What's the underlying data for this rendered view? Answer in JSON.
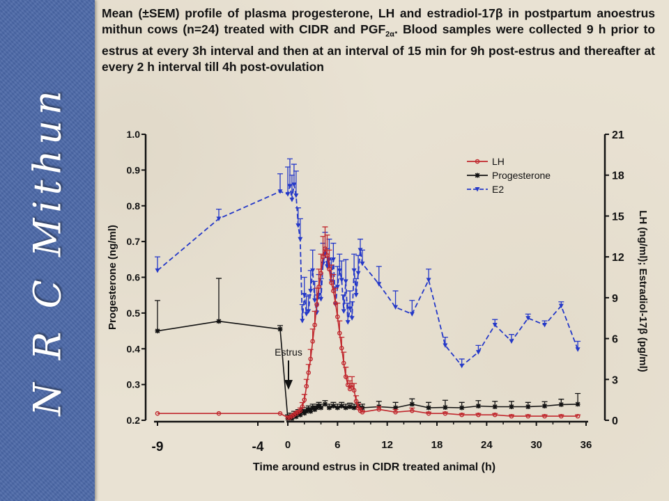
{
  "sidebar": {
    "label": "N R C Mithun"
  },
  "header": {
    "title_main": "Mean (±SEM) profile of plasma progesterone, LH and estradiol-17β in postpartum anoestrus mithun cows (n=24) treated with CIDR and PGF",
    "title_sub": "2α",
    "title_rest": ". Blood samples were collected 9 h prior to estrus at every 3h interval and then at an interval of 15 min for 9h post-estrus and thereafter at every 2 h interval till 4h post-ovulation"
  },
  "chart_data": {
    "type": "line",
    "xlabel": "Time around estrus in CIDR treated animal (h)",
    "ylabel_left": "Progesterone (ng/ml)",
    "ylabel_right": "LH (ng/ml); Estradiol-17β (pg/ml)",
    "x_tick_labels": [
      "-9",
      "-4",
      "0",
      "6",
      "12",
      "18",
      "24",
      "30",
      "36"
    ],
    "pre_estrus_ticks": [
      -9,
      -4
    ],
    "post_estrus_ticks": [
      0,
      6,
      12,
      18,
      24,
      30,
      36
    ],
    "ylim_left": [
      0.2,
      1.0
    ],
    "yticks_left": [
      "0.2",
      "0.3",
      "0.4",
      "0.5",
      "0.6",
      "0.7",
      "0.8",
      "0.9",
      "1.0"
    ],
    "ylim_right": [
      0,
      21
    ],
    "yticks_right": [
      "0",
      "3",
      "6",
      "9",
      "12",
      "15",
      "18",
      "21"
    ],
    "annotation": "Estrus",
    "legend_position": "top-right",
    "legend": [
      "LH",
      "Progesterone",
      "E2"
    ],
    "colors": {
      "lh": "#c0272d",
      "progesterone": "#111111",
      "e2": "#2438c8",
      "axis": "#111111"
    },
    "series": [
      {
        "name": "LH",
        "axis": "right",
        "style": "solid",
        "marker": "circle",
        "x": [
          -9,
          -6,
          -3,
          0,
          0.25,
          0.5,
          0.75,
          1,
          1.25,
          1.5,
          1.75,
          2,
          2.25,
          2.5,
          2.75,
          3,
          3.25,
          3.5,
          3.75,
          4,
          4.25,
          4.5,
          4.75,
          5,
          5.25,
          5.5,
          5.75,
          6,
          6.25,
          6.5,
          6.75,
          7,
          7.25,
          7.5,
          7.75,
          8,
          8.25,
          8.5,
          8.75,
          9,
          11,
          13,
          15,
          17,
          19,
          21,
          23,
          25,
          27,
          29,
          31,
          33,
          35
        ],
        "y": [
          0.5,
          0.5,
          0.5,
          0.2,
          0.2,
          0.3,
          0.4,
          0.5,
          0.6,
          0.7,
          1.0,
          1.5,
          2.5,
          3.5,
          4.5,
          5.8,
          7.0,
          8.5,
          9.8,
          10.8,
          12.0,
          12.6,
          12.1,
          11.1,
          10.1,
          9.5,
          8.6,
          7.6,
          6.4,
          5.3,
          4.2,
          3.2,
          2.6,
          2.3,
          2.6,
          2.2,
          1.4,
          0.9,
          0.7,
          0.6,
          0.8,
          0.6,
          0.7,
          0.5,
          0.5,
          0.4,
          0.4,
          0.4,
          0.3,
          0.3,
          0.3,
          0.3,
          0.3
        ],
        "err": [
          0,
          0,
          0,
          0.1,
          0.1,
          0.1,
          0.1,
          0.1,
          0.1,
          0.2,
          0.3,
          0.4,
          0.5,
          0.6,
          0.7,
          0.9,
          1.0,
          1.2,
          1.3,
          1.4,
          1.5,
          1.6,
          1.5,
          1.4,
          1.3,
          1.2,
          1.1,
          1.0,
          0.9,
          0.8,
          0.8,
          0.7,
          0.6,
          0.6,
          0.6,
          0.5,
          0.4,
          0.3,
          0.2,
          0.1,
          0.2,
          0.2,
          0.2,
          0.1,
          0.1,
          0.1,
          0.1,
          0.1,
          0.1,
          0.1,
          0.1,
          0.1,
          0.1
        ]
      },
      {
        "name": "Progesterone",
        "axis": "left",
        "style": "solid",
        "marker": "star",
        "x": [
          -9,
          -6,
          -3,
          0,
          0.25,
          0.5,
          0.75,
          1,
          1.25,
          1.5,
          1.75,
          2,
          2.25,
          2.5,
          2.75,
          3,
          3.25,
          3.5,
          3.75,
          4,
          4.5,
          5,
          5.5,
          6,
          6.5,
          7,
          7.5,
          8,
          8.5,
          9,
          11,
          13,
          15,
          17,
          19,
          21,
          23,
          25,
          27,
          29,
          31,
          33,
          35
        ],
        "y": [
          0.45,
          0.477,
          0.455,
          0.205,
          0.21,
          0.205,
          0.215,
          0.21,
          0.22,
          0.215,
          0.225,
          0.22,
          0.225,
          0.23,
          0.225,
          0.235,
          0.23,
          0.235,
          0.24,
          0.235,
          0.245,
          0.235,
          0.24,
          0.235,
          0.24,
          0.235,
          0.238,
          0.235,
          0.24,
          0.235,
          0.238,
          0.235,
          0.245,
          0.235,
          0.236,
          0.235,
          0.24,
          0.238,
          0.238,
          0.238,
          0.24,
          0.244,
          0.245
        ],
        "err": [
          0.085,
          0.12,
          0.01,
          0.01,
          0.01,
          0.01,
          0.01,
          0.01,
          0.01,
          0.01,
          0.01,
          0.01,
          0.01,
          0.01,
          0.01,
          0.01,
          0.01,
          0.01,
          0.01,
          0.01,
          0.01,
          0.01,
          0.01,
          0.01,
          0.01,
          0.01,
          0.01,
          0.01,
          0.01,
          0.01,
          0.015,
          0.015,
          0.015,
          0.015,
          0.02,
          0.015,
          0.015,
          0.015,
          0.015,
          0.012,
          0.012,
          0.015,
          0.03
        ]
      },
      {
        "name": "E2",
        "axis": "right",
        "style": "dashed",
        "marker": "triangle-down",
        "x": [
          -9,
          -6,
          -3,
          0,
          0.25,
          0.5,
          0.75,
          1,
          1.25,
          1.5,
          1.75,
          2,
          2.25,
          2.5,
          2.75,
          3,
          3.25,
          3.5,
          3.75,
          4,
          4.25,
          4.5,
          4.75,
          5,
          5.25,
          5.5,
          5.75,
          6,
          6.25,
          6.5,
          6.75,
          7,
          7.25,
          7.5,
          7.75,
          8,
          8.25,
          8.5,
          8.75,
          9,
          11,
          13,
          15,
          17,
          19,
          21,
          23,
          25,
          27,
          29,
          31,
          33,
          35
        ],
        "y": [
          11.0,
          14.8,
          16.8,
          16.6,
          17.2,
          16.2,
          17.3,
          16.5,
          14.3,
          13.3,
          7.3,
          9.2,
          7.8,
          8.0,
          9.5,
          11.0,
          8.8,
          7.9,
          9.2,
          8.9,
          11.5,
          12.2,
          11.3,
          11.8,
          10.2,
          11.8,
          8.5,
          9.8,
          11.0,
          10.3,
          8.0,
          10.2,
          7.2,
          8.2,
          7.5,
          11.0,
          9.2,
          10.8,
          12.5,
          11.5,
          10.0,
          8.3,
          7.8,
          10.3,
          5.5,
          4.0,
          5.0,
          7.0,
          5.8,
          7.5,
          7.0,
          8.4,
          5.2
        ],
        "err": [
          1.0,
          0.7,
          1.3,
          2.0,
          2.0,
          1.8,
          1.5,
          1.8,
          1.3,
          1.5,
          1.2,
          1.3,
          1.3,
          1.2,
          1.5,
          1.5,
          1.4,
          1.3,
          1.5,
          1.5,
          1.5,
          1.6,
          1.3,
          1.5,
          1.6,
          1.2,
          1.3,
          1.5,
          1.2,
          1.4,
          1.2,
          1.6,
          1.4,
          1.3,
          1.2,
          1.2,
          1.2,
          1.3,
          0.8,
          1.0,
          1.3,
          1.2,
          1.0,
          0.8,
          0.6,
          0.5,
          0.5,
          0.4,
          0.5,
          0.3,
          0.3,
          0.3,
          0.6
        ]
      }
    ]
  }
}
